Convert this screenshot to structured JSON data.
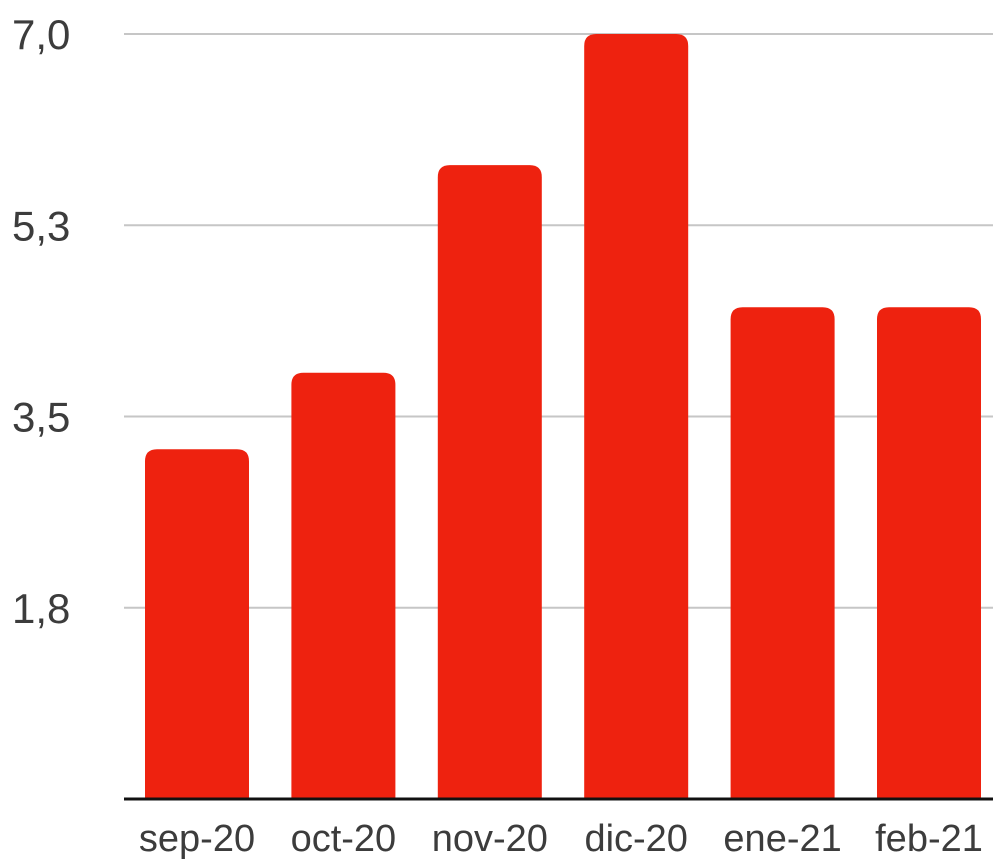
{
  "chart_data": {
    "type": "bar",
    "title": "",
    "xlabel": "",
    "ylabel": "",
    "categories": [
      "sep-20",
      "oct-20",
      "nov-20",
      "dic-20",
      "ene-21",
      "feb-21"
    ],
    "values": [
      3.2,
      3.9,
      5.8,
      7.0,
      4.5,
      4.5
    ],
    "y_ticks": [
      "1,8",
      "3,5",
      "5,3",
      "7,0"
    ],
    "y_tick_values": [
      1.75,
      3.5,
      5.25,
      7.0
    ],
    "ylim": [
      0,
      7.0
    ],
    "grid": true,
    "legend": "none",
    "colors": {
      "bar": "#ee220f",
      "grid": "#c6c6c6",
      "axis": "#111111",
      "text": "#3c3c3c"
    }
  }
}
